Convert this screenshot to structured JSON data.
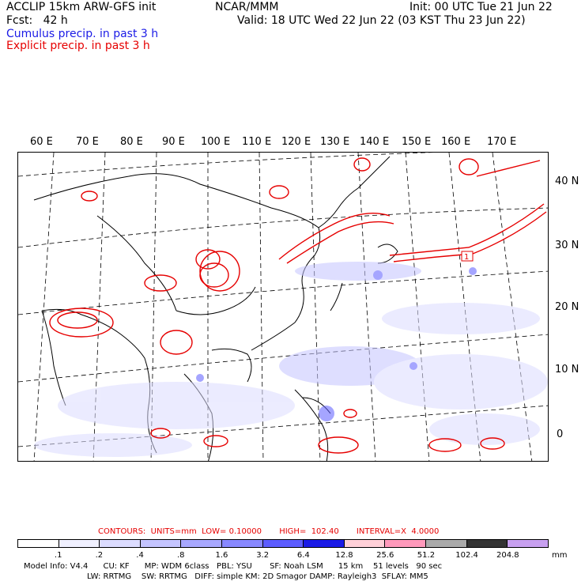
{
  "header": {
    "line1_left": "ACCLIP 15km ARW-GFS init",
    "line1_center": "NCAR/MMM",
    "line1_right": "Init: 00 UTC Tue 21 Jun 22",
    "line2_left": "Fcst:   42 h",
    "line2_right": "Valid: 18 UTC Wed 22 Jun 22 (03 KST Thu 23 Jun 22)",
    "cumulus": "Cumulus precip. in past 3 h",
    "explicit": "Explicit precip. in past 3 h"
  },
  "map": {
    "lon_labels": [
      "60 E",
      "70 E",
      "80 E",
      "90 E",
      "100 E",
      "110 E",
      "120 E",
      "130 E",
      "140 E",
      "150 E",
      "160 E",
      "170 E"
    ],
    "lat_labels": [
      "40 N",
      "30 N",
      "20 N",
      "10 N",
      "0"
    ],
    "marker": "1"
  },
  "legend": {
    "contours_line": "CONTOURS:  UNITS=mm  LOW= 0.10000       HIGH=  102.40       INTERVAL=X  4.0000",
    "levels": [
      ".1",
      ".2",
      ".4",
      ".8",
      "1.6",
      "3.2",
      "6.4",
      "12.8",
      "25.6",
      "51.2",
      "102.4",
      "204.8"
    ],
    "units": "mm",
    "colors": [
      "#ffffff",
      "#f0f0ff",
      "#dcdcff",
      "#c4c4ff",
      "#a8a8ff",
      "#8888ff",
      "#5c5cff",
      "#1a1ae6",
      "#ffd0d8",
      "#ff99bb",
      "#aaaaaa",
      "#333333",
      "#c8a0f0"
    ]
  },
  "footer": {
    "line1": "Model Info: V4.4      CU: KF      MP: WDM 6class   PBL: YSU       SF: Noah LSM      15 km    51 levels   90 sec",
    "line2": "LW: RRTMG    SW: RRTMG   DIFF: simple KM: 2D Smagor DAMP: Rayleigh3  SFLAY: MM5"
  }
}
